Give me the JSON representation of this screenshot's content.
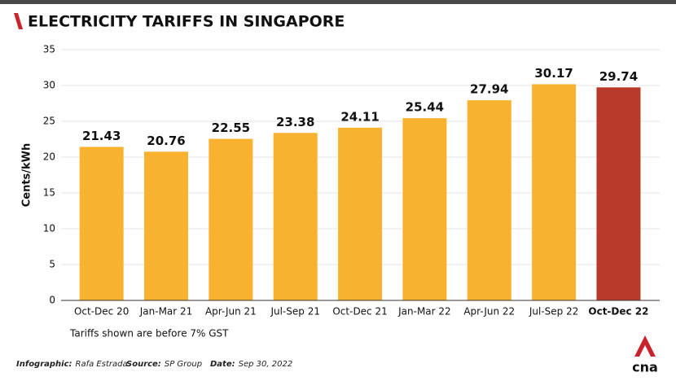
{
  "chart_data": {
    "type": "bar",
    "title": "ELECTRICITY TARIFFS IN SINGAPORE",
    "y_label": "Cents/kWh",
    "categories": [
      "Oct-Dec 20",
      "Jan-Mar 21",
      "Apr-Jun 21",
      "Jul-Sep 21",
      "Oct-Dec 21",
      "Jan-Mar 22",
      "Apr-Jun 22",
      "Jul-Sep 22",
      "Oct-Dec 22"
    ],
    "values": [
      21.43,
      20.76,
      22.55,
      23.38,
      24.11,
      25.44,
      27.94,
      30.17,
      29.74
    ],
    "color": "#f9b22f",
    "highlight_index": 8,
    "highlight_color": "#b93a2a",
    "ylim": [
      0,
      35
    ],
    "yticks": [
      0,
      5,
      10,
      15,
      20,
      25,
      30,
      35
    ],
    "grid": true,
    "note": "Tariffs shown are before 7% GST"
  },
  "footer": {
    "credits": [
      {
        "label": "Infographic:",
        "text": "Rafa Estrada"
      },
      {
        "label": "Source:",
        "text": "SP Group"
      },
      {
        "label": "Date:",
        "text": "Sep 30, 2022"
      }
    ],
    "logo": "cna"
  }
}
